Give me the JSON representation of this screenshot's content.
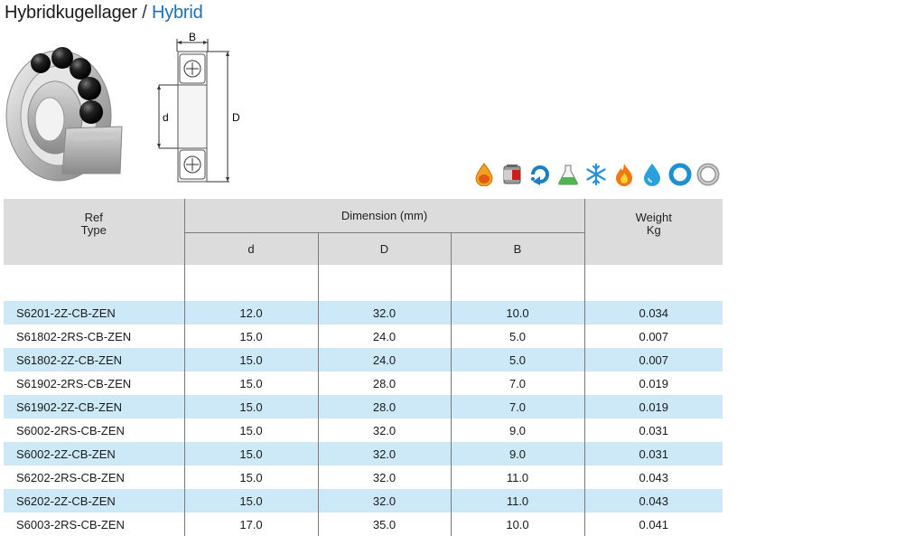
{
  "header": {
    "title_de": "Hybridkugellager",
    "separator": "/",
    "title_en": "Hybrid"
  },
  "diagram": {
    "label_b": "B",
    "label_d_inner": "d",
    "label_d_outer": "D"
  },
  "property_icons": [
    "oil-drop-icon",
    "grease-can-icon",
    "rotation-arrows-icon",
    "chemical-flask-icon",
    "snowflake-icon",
    "flame-icon",
    "water-drop-icon",
    "ring-icon",
    "ring-grey-icon"
  ],
  "colors": {
    "header_bg": "#dcdcdc",
    "row_highlight": "#cde9f8",
    "accent_blue": "#1f6fb2"
  },
  "table": {
    "headers": {
      "ref_line1": "Ref",
      "ref_line2": "Type",
      "dimension": "Dimension (mm)",
      "d": "d",
      "D": "D",
      "B": "B",
      "weight_line1": "Weight",
      "weight_line2": "Kg"
    },
    "rows": [
      {
        "type": "S6201-2Z-CB-ZEN",
        "d": "12.0",
        "D": "32.0",
        "B": "10.0",
        "weight": "0.034"
      },
      {
        "type": "S61802-2RS-CB-ZEN",
        "d": "15.0",
        "D": "24.0",
        "B": "5.0",
        "weight": "0.007"
      },
      {
        "type": "S61802-2Z-CB-ZEN",
        "d": "15.0",
        "D": "24.0",
        "B": "5.0",
        "weight": "0.007"
      },
      {
        "type": "S61902-2RS-CB-ZEN",
        "d": "15.0",
        "D": "28.0",
        "B": "7.0",
        "weight": "0.019"
      },
      {
        "type": "S61902-2Z-CB-ZEN",
        "d": "15.0",
        "D": "28.0",
        "B": "7.0",
        "weight": "0.019"
      },
      {
        "type": "S6002-2RS-CB-ZEN",
        "d": "15.0",
        "D": "32.0",
        "B": "9.0",
        "weight": "0.031"
      },
      {
        "type": "S6002-2Z-CB-ZEN",
        "d": "15.0",
        "D": "32.0",
        "B": "9.0",
        "weight": "0.031"
      },
      {
        "type": "S6202-2RS-CB-ZEN",
        "d": "15.0",
        "D": "32.0",
        "B": "11.0",
        "weight": "0.043"
      },
      {
        "type": "S6202-2Z-CB-ZEN",
        "d": "15.0",
        "D": "32.0",
        "B": "11.0",
        "weight": "0.043"
      },
      {
        "type": "S6003-2RS-CB-ZEN",
        "d": "17.0",
        "D": "35.0",
        "B": "10.0",
        "weight": "0.041"
      }
    ]
  }
}
